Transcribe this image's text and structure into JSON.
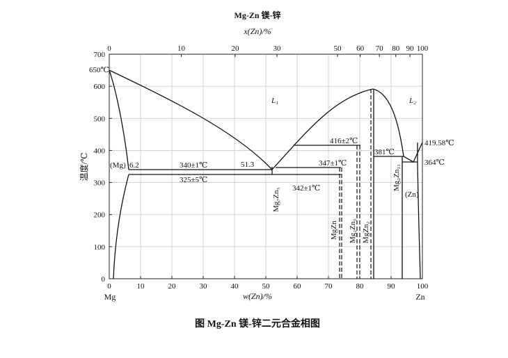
{
  "title": "Mg-Zn  镁-锌",
  "top_axis": {
    "label": "x(Zn)/%",
    "ticks": [
      0,
      10,
      20,
      30,
      50,
      60,
      70,
      80,
      90,
      100
    ]
  },
  "bottom_axis": {
    "label": "w(Zn)/%",
    "ticks": [
      0,
      10,
      20,
      30,
      40,
      50,
      60,
      70,
      80,
      90,
      100
    ],
    "left_end": "Mg",
    "right_end": "Zn"
  },
  "left_axis": {
    "label": "温度/℃",
    "ticks": [
      0,
      100,
      200,
      300,
      400,
      500,
      600,
      700
    ]
  },
  "annotations": {
    "mg_melt": "650℃",
    "mg_phase": "(Mg)",
    "mg_sol": "6.2",
    "eut1": "340±1℃",
    "eut1_comp": "51.3",
    "peri1": "325±5℃",
    "l1": "L₁",
    "l2": "L₂",
    "peri2": "416±2℃",
    "peri3": "347±1℃",
    "peri4": "342±1℃",
    "peri5": "381℃",
    "zn_melt": "419.58℃",
    "eut2": "364℃",
    "zn_phase": "(Zn)",
    "mg7zn3": "Mg₇Zn₃",
    "mgzn": "MgZn",
    "mg2zn3": "Mg₂Zn₃",
    "mgzn2": "MgZn₂",
    "mg2zn11": "Mg₂Zn₁₁"
  },
  "caption": "图 Mg-Zn 镁-锌二元合金相图"
}
